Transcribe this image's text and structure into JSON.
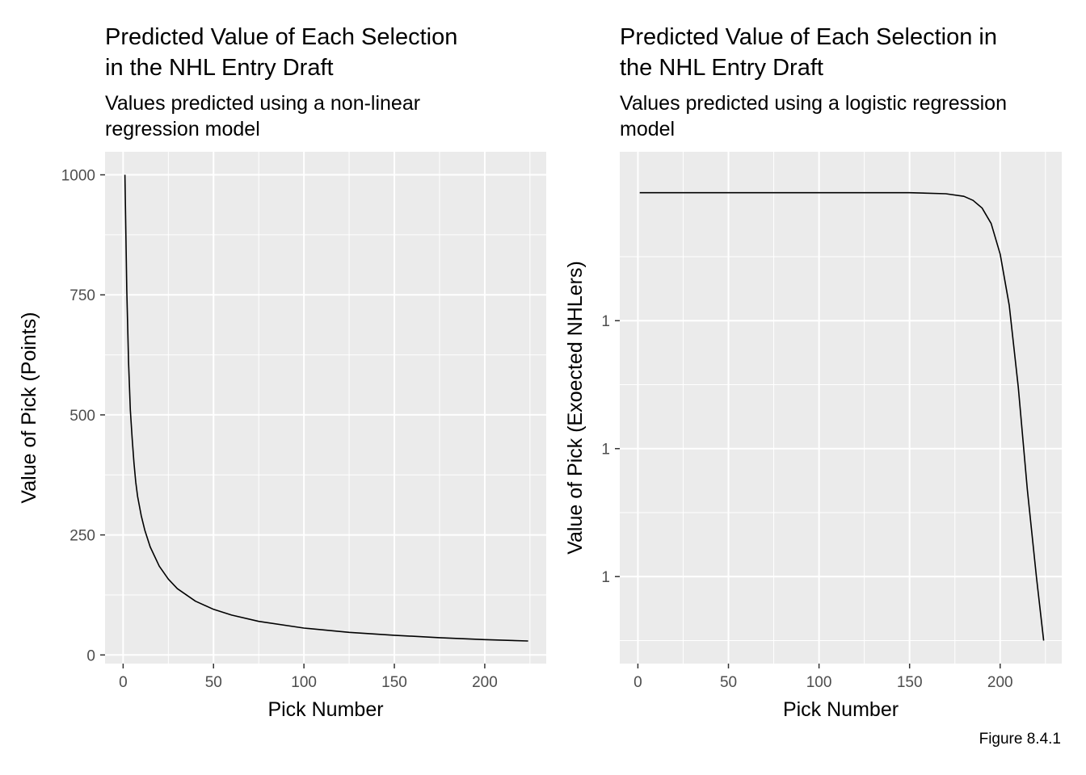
{
  "chart_data": [
    {
      "type": "line",
      "title": "Predicted Value of Each Selection\nin the NHL Entry Draft",
      "subtitle": "Values predicted using a non-linear\nregression model",
      "xlabel": "Pick Number",
      "ylabel": "Value of Pick (Points)",
      "xlim": [
        -10,
        234
      ],
      "ylim": [
        -18,
        1048
      ],
      "x_ticks": [
        0,
        50,
        100,
        150,
        200
      ],
      "x_tick_labels": [
        "0",
        "50",
        "100",
        "150",
        "200"
      ],
      "y_ticks": [
        0,
        250,
        500,
        750,
        1000
      ],
      "y_tick_labels": [
        "0",
        "250",
        "500",
        "750",
        "1000"
      ],
      "grid": true,
      "series": [
        {
          "x": [
            1,
            2,
            3,
            4,
            5,
            6,
            7,
            8,
            10,
            12,
            15,
            20,
            25,
            30,
            40,
            50,
            60,
            75,
            100,
            125,
            150,
            175,
            200,
            224
          ],
          "values": [
            1000,
            760,
            610,
            510,
            450,
            400,
            360,
            330,
            290,
            260,
            225,
            185,
            158,
            138,
            112,
            95,
            83,
            70,
            56,
            47,
            41,
            36,
            32,
            29
          ]
        }
      ]
    },
    {
      "type": "line",
      "title": "Predicted Value of Each Selection in\nthe NHL Entry Draft",
      "subtitle": "Values predicted using a logistic regression\nmodel",
      "xlabel": "Pick Number",
      "ylabel": "Value of Pick (Exoected NHLers)",
      "xlim": [
        -10,
        234
      ],
      "ylim": [
        0.58,
        1.58
      ],
      "x_ticks": [
        0,
        50,
        100,
        150,
        200
      ],
      "x_tick_labels": [
        "0",
        "50",
        "100",
        "150",
        "200"
      ],
      "y_ticks": [
        0.75,
        1.0,
        1.25
      ],
      "y_tick_labels": [
        "1",
        "1",
        "1"
      ],
      "grid": true,
      "series": [
        {
          "x": [
            1,
            50,
            100,
            150,
            170,
            180,
            185,
            190,
            195,
            200,
            205,
            210,
            215,
            220,
            224
          ],
          "values": [
            1.5,
            1.5,
            1.5,
            1.5,
            1.498,
            1.493,
            1.485,
            1.47,
            1.44,
            1.38,
            1.28,
            1.12,
            0.92,
            0.75,
            0.625
          ]
        }
      ]
    }
  ],
  "caption": "Figure 8.4.1"
}
